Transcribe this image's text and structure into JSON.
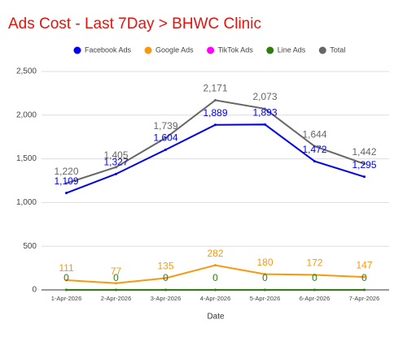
{
  "chart_data": {
    "type": "line",
    "title": "Ads Cost - Last 7Day > BHWC Clinic",
    "x_label": "Date",
    "categories": [
      "1-Apr-2026",
      "2-Apr-2026",
      "3-Apr-2026",
      "4-Apr-2026",
      "5-Apr-2026",
      "6-Apr-2026",
      "7-Apr-2026"
    ],
    "series": [
      {
        "name": "Facebook Ads",
        "color": "#0000ee",
        "show_labels": true,
        "values": [
          1109,
          1327,
          1604,
          1889,
          1893,
          1472,
          1295
        ],
        "value_labels": [
          "1,109",
          "1,327",
          "1,604",
          "1,889",
          "1,893",
          "1,472",
          "1,295"
        ]
      },
      {
        "name": "Google Ads",
        "color": "#f59a0e",
        "show_labels": true,
        "values": [
          111,
          77,
          135,
          282,
          180,
          172,
          147
        ]
      },
      {
        "name": "TikTok Ads",
        "color": "#ff00ff",
        "show_labels": false,
        "values": [
          0,
          0,
          0,
          0,
          0,
          0,
          0
        ]
      },
      {
        "name": "Line Ads",
        "color": "#2e7d0f",
        "show_labels": true,
        "values": [
          0,
          0,
          0,
          0,
          0,
          0,
          0
        ]
      },
      {
        "name": "Total",
        "color": "#666666",
        "show_labels": true,
        "values": [
          1220,
          1405,
          1739,
          2171,
          2073,
          1644,
          1442
        ],
        "value_labels": [
          "1,220",
          "1,405",
          "1,739",
          "2,171",
          "2,073",
          "1,644",
          "1,442"
        ]
      }
    ],
    "ylim": [
      0,
      2500
    ],
    "yticks": [
      0,
      500,
      {
        "value": 1000,
        "label": "1,000"
      },
      {
        "value": 1500,
        "label": "1,500"
      },
      {
        "value": 2000,
        "label": "2,000"
      },
      {
        "value": 2500,
        "label": "2,500"
      }
    ],
    "grid": true,
    "legend": "top"
  }
}
